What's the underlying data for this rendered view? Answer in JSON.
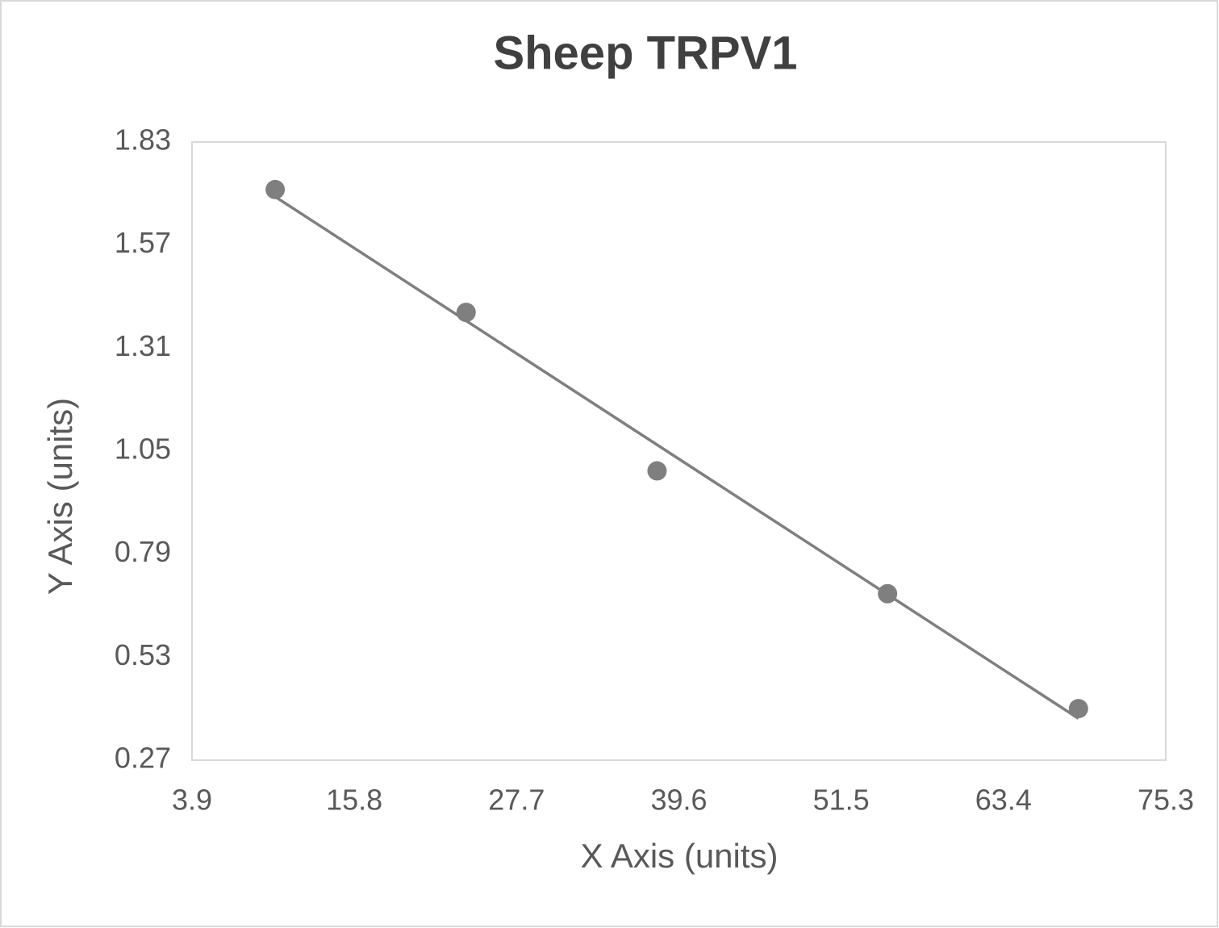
{
  "chart_data": {
    "type": "scatter",
    "title": "Sheep TRPV1",
    "x_label": "X Axis (units)",
    "y_label": "Y Axis (units)",
    "series": [
      {
        "color": "#7f7f7f",
        "x": [
          10.0,
          24.0,
          38.0,
          54.9,
          68.9
        ],
        "values": [
          1.71,
          1.4,
          1.0,
          0.69,
          0.4
        ]
      }
    ],
    "trendline": "linear",
    "xlim": [
      3.9,
      75.3
    ],
    "xticks": [
      3.9,
      15.8,
      27.7,
      39.6,
      51.5,
      63.4,
      75.3
    ],
    "ylim": [
      0.27,
      1.83
    ],
    "yticks": [
      0.27,
      0.53,
      0.79,
      1.05,
      1.31,
      1.57,
      1.83
    ],
    "grid": false
  }
}
